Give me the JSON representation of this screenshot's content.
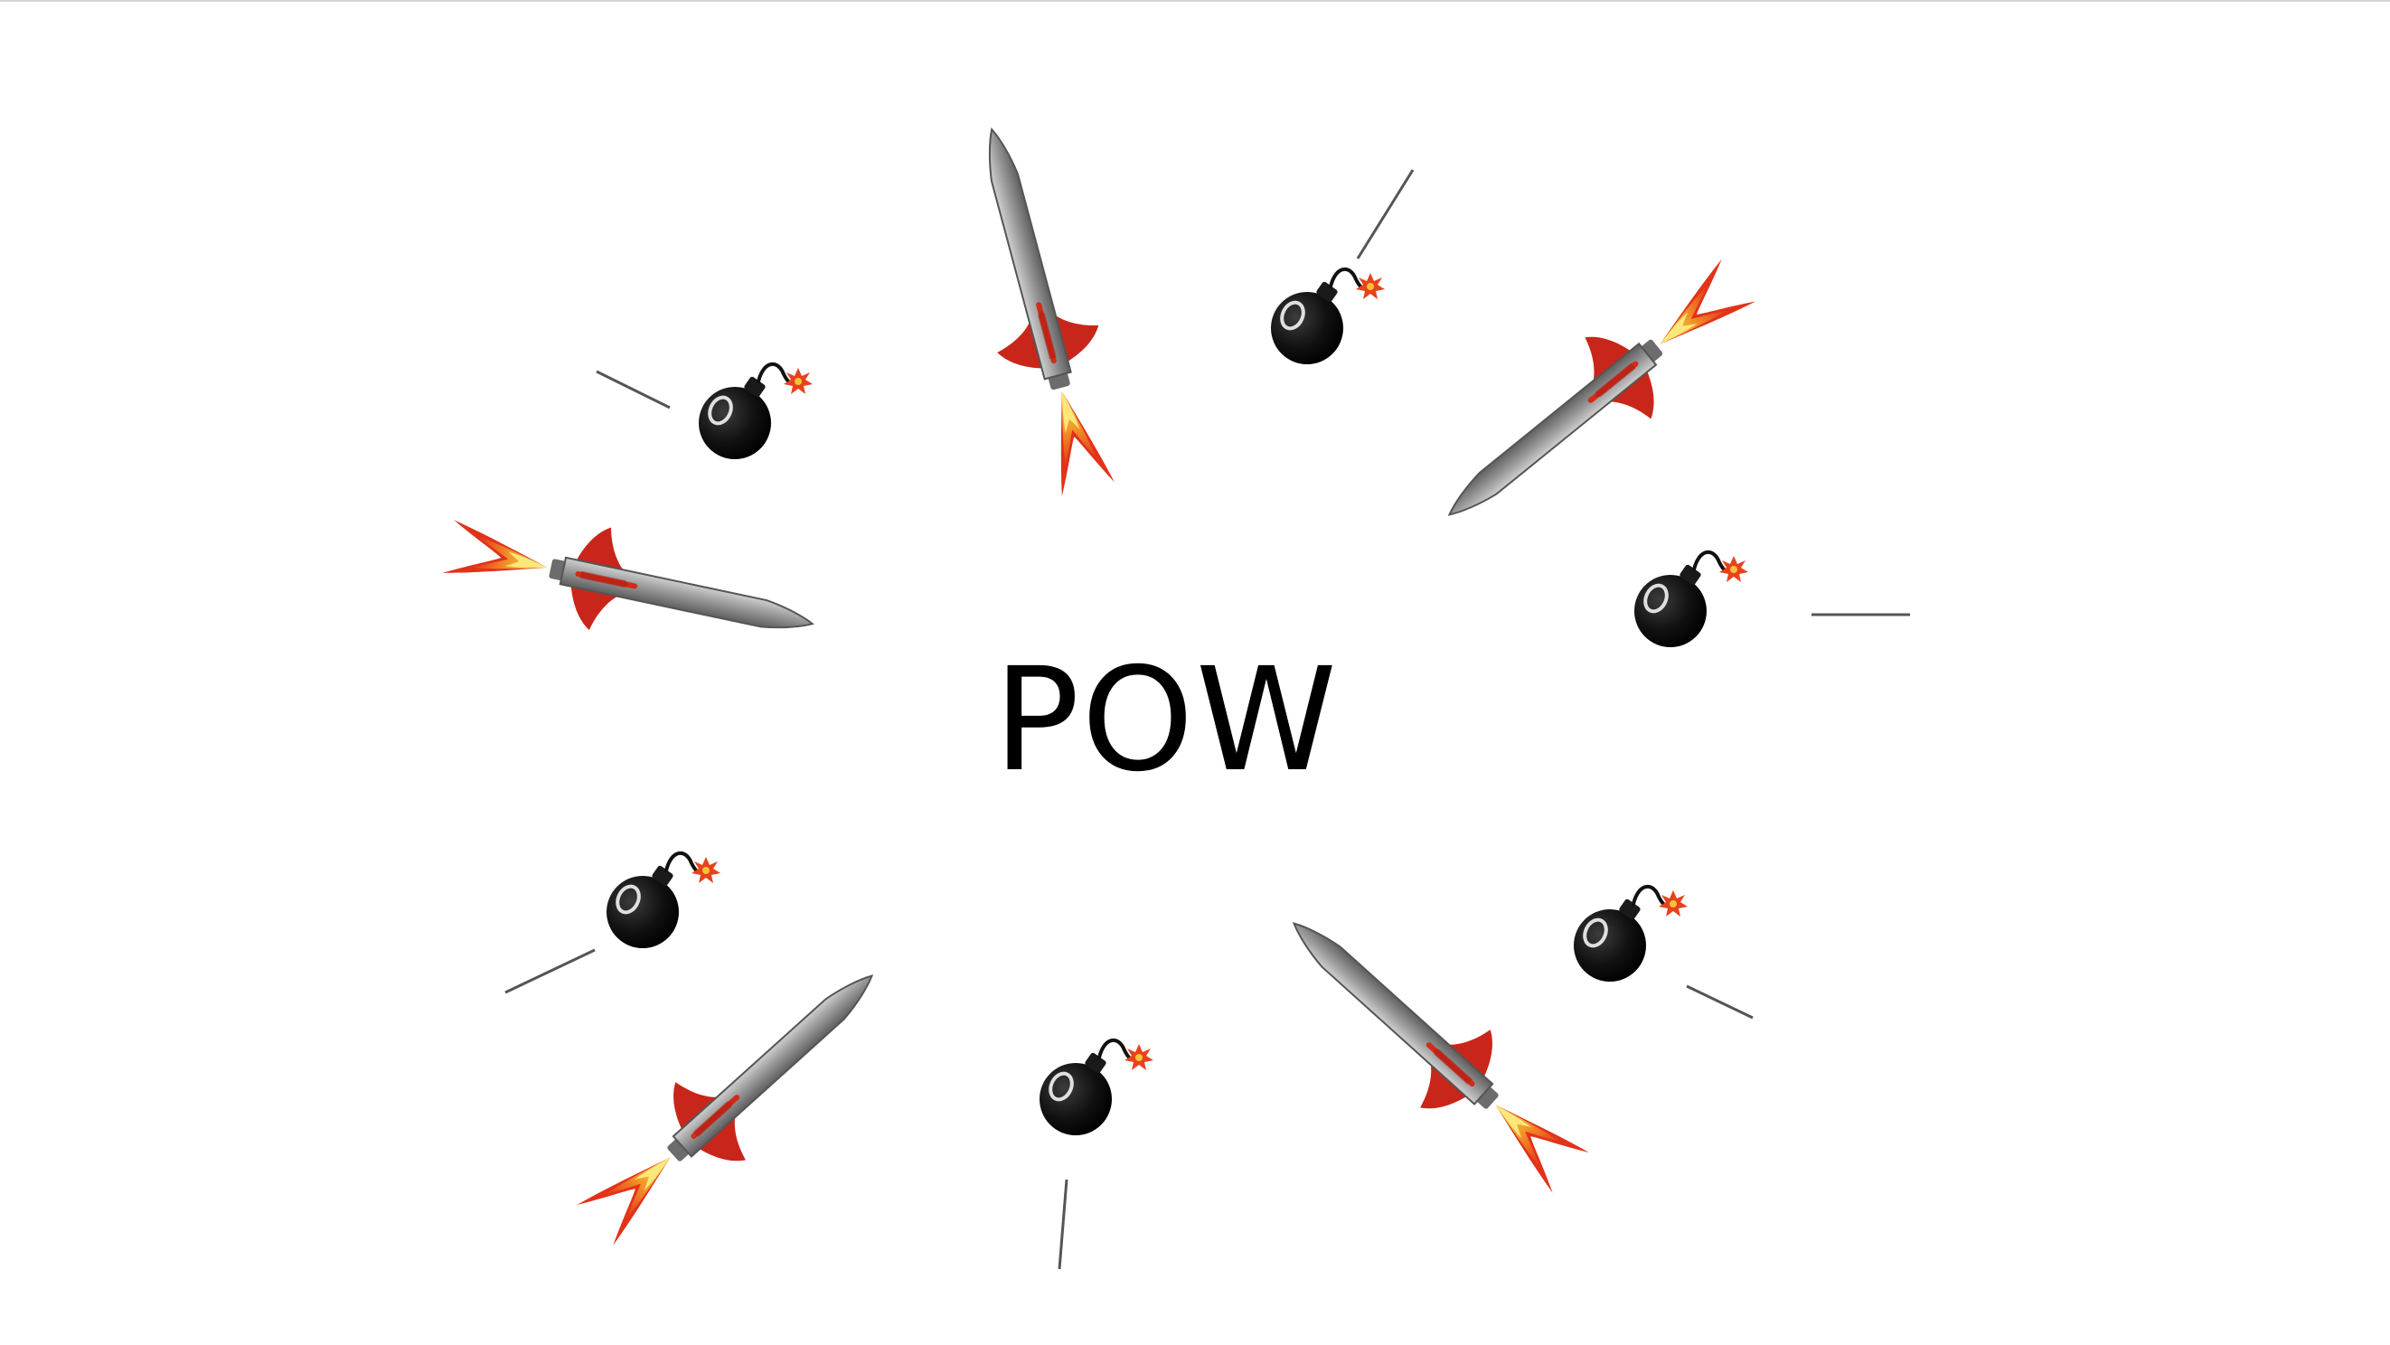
{
  "canvas": {
    "center_word": "POW"
  },
  "icons": {
    "rocket": "rocket-icon",
    "bomb": "bomb-icon",
    "motion_line": "motion-line"
  },
  "colors": {
    "background": "#ffffff",
    "text": "#000000",
    "rocket_body": "#8e8e8e",
    "rocket_fin": "#d32a1a",
    "flame_outer": "#e8421c",
    "flame_inner": "#f8d43c",
    "bomb": "#1a1a1a",
    "fuse_spark": "#e8421c",
    "motion_line": "#555555"
  }
}
